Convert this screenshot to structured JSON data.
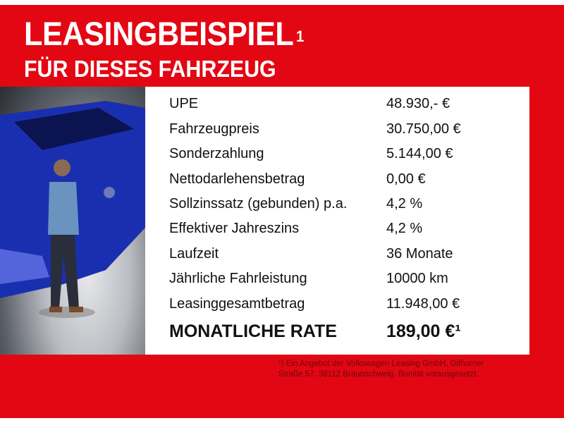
{
  "header": {
    "title": "LEASINGBEISPIEL",
    "title_sup": "1",
    "subtitle": "FÜR DIESES FAHRZEUG"
  },
  "colors": {
    "brand_red": "#e30613",
    "car_blue": "#1a2fb0"
  },
  "rows": [
    {
      "label": "UPE",
      "value": "48.930,- €"
    },
    {
      "label": "Fahrzeugpreis",
      "value": "30.750,00 €"
    },
    {
      "label": "Sonderzahlung",
      "value": "5.144,00 €"
    },
    {
      "label": "Nettodarlehensbetrag",
      "value": "0,00 €"
    },
    {
      "label": "Sollzinssatz (gebunden) p.a.",
      "value": "4,2 %"
    },
    {
      "label": "Effektiver Jahreszins",
      "value": "4,2 %"
    },
    {
      "label": "Laufzeit",
      "value": "36 Monate"
    },
    {
      "label": "Jährliche Fahrleistung",
      "value": "10000 km"
    },
    {
      "label": "Leasinggesamtbetrag",
      "value": "11.948,00 €"
    }
  ],
  "total": {
    "label": "MONATLICHE RATE",
    "value": "189,00 €¹"
  },
  "footnote": {
    "line1": "¹) Ein Angebot der Volkswagen Leasing GmbH, Gifhorner",
    "line2": "Straße 57, 38112 Braunschweig. Bonität vorausgesetzt."
  }
}
